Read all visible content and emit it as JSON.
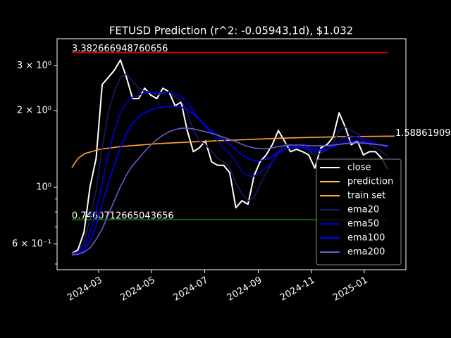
{
  "chart_data": {
    "type": "line",
    "title": "FETUSD Prediction (r^2: -0.05943,1d), $1.032",
    "log_y": true,
    "background": "#000000",
    "legend": "lower right",
    "xlim": [
      "2024-01-13",
      "2025-02-18"
    ],
    "xticks": [
      "2024-03",
      "2024-05",
      "2024-07",
      "2024-09",
      "2024-11",
      "2025-01"
    ],
    "ylim": [
      0.475,
      3.83
    ],
    "yticks": [
      {
        "value": 0.6,
        "label": "6 × 10⁻¹"
      },
      {
        "value": 1,
        "label": "10⁰"
      },
      {
        "value": 2,
        "label": "2 × 10⁰"
      },
      {
        "value": 3,
        "label": "3 × 10⁰"
      }
    ],
    "yminorticks": [
      0.5,
      0.7,
      0.8,
      0.9
    ],
    "hlines": [
      {
        "value": 3.382666948760656,
        "label": "3.382666948760656",
        "color": "#e00000"
      },
      {
        "value": 0.7460712665043656,
        "label": "0.7460712665043656",
        "color": "#008000"
      }
    ],
    "series": [
      {
        "name": "close",
        "color": "#ffffff",
        "x": [
          "2024-01-30",
          "2024-02-06",
          "2024-02-13",
          "2024-02-20",
          "2024-02-27",
          "2024-03-05",
          "2024-03-12",
          "2024-03-19",
          "2024-03-26",
          "2024-04-02",
          "2024-04-09",
          "2024-04-16",
          "2024-04-23",
          "2024-04-30",
          "2024-05-07",
          "2024-05-14",
          "2024-05-21",
          "2024-05-28",
          "2024-06-04",
          "2024-06-11",
          "2024-06-18",
          "2024-06-25",
          "2024-07-02",
          "2024-07-09",
          "2024-07-16",
          "2024-07-23",
          "2024-07-30",
          "2024-08-06",
          "2024-08-13",
          "2024-08-20",
          "2024-08-27",
          "2024-09-03",
          "2024-09-10",
          "2024-09-17",
          "2024-09-24",
          "2024-10-01",
          "2024-10-08",
          "2024-10-15",
          "2024-10-22",
          "2024-10-29",
          "2024-11-05",
          "2024-11-12",
          "2024-11-19",
          "2024-11-26",
          "2024-12-03",
          "2024-12-10",
          "2024-12-17",
          "2024-12-24",
          "2024-12-31",
          "2025-01-07",
          "2025-01-14",
          "2025-01-21",
          "2025-01-28"
        ],
        "values": [
          0.55,
          0.568,
          0.666,
          1.006,
          1.298,
          2.53,
          2.7,
          2.88,
          3.16,
          2.7,
          2.23,
          2.23,
          2.45,
          2.3,
          2.23,
          2.45,
          2.37,
          2.09,
          2.16,
          1.67,
          1.38,
          1.43,
          1.52,
          1.26,
          1.22,
          1.22,
          1.14,
          0.832,
          0.886,
          0.858,
          1.11,
          1.26,
          1.34,
          1.47,
          1.67,
          1.52,
          1.38,
          1.41,
          1.38,
          1.34,
          1.19,
          1.43,
          1.47,
          1.57,
          1.96,
          1.73,
          1.47,
          1.52,
          1.34,
          1.38,
          1.38,
          1.3,
          1.18
        ]
      },
      {
        "name": "prediction",
        "color": "#ffcc33",
        "x": [
          "2025-02-05"
        ],
        "values": [
          1.58861909
        ],
        "value_labels": [
          "1.588619090"
        ]
      },
      {
        "name": "train set",
        "color": "#ffa533",
        "x": [
          "2024-01-30",
          "2024-02-06",
          "2024-02-14",
          "2024-03-02",
          "2024-03-27",
          "2024-05-07",
          "2024-07-12",
          "2024-10-02",
          "2024-12-07",
          "2025-02-05"
        ],
        "values": [
          1.195,
          1.298,
          1.357,
          1.41,
          1.446,
          1.483,
          1.522,
          1.561,
          1.581,
          1.5886
        ]
      },
      {
        "name": "ema20",
        "color": "#191970",
        "x": [
          "2024-01-30",
          "2024-02-06",
          "2024-02-13",
          "2024-02-20",
          "2024-02-27",
          "2024-03-05",
          "2024-03-12",
          "2024-03-19",
          "2024-03-26",
          "2024-04-02",
          "2024-04-09",
          "2024-04-16",
          "2024-04-23",
          "2024-04-30",
          "2024-05-07",
          "2024-05-14",
          "2024-05-21",
          "2024-05-28",
          "2024-06-04",
          "2024-06-11",
          "2024-06-18",
          "2024-06-25",
          "2024-07-02",
          "2024-07-09",
          "2024-07-16",
          "2024-07-23",
          "2024-07-30",
          "2024-08-06",
          "2024-08-13",
          "2024-08-20",
          "2024-08-27",
          "2024-09-03",
          "2024-09-10",
          "2024-09-17",
          "2024-09-24",
          "2024-10-01",
          "2024-10-08",
          "2024-10-15",
          "2024-10-22",
          "2024-10-29",
          "2024-11-05",
          "2024-11-12",
          "2024-11-19",
          "2024-11-26",
          "2024-12-03",
          "2024-12-10",
          "2024-12-17",
          "2024-12-24",
          "2024-12-31",
          "2025-01-07",
          "2025-01-14",
          "2025-01-21",
          "2025-01-28"
        ],
        "values": [
          0.55,
          0.557,
          0.605,
          0.756,
          0.975,
          1.428,
          1.963,
          2.375,
          2.697,
          2.785,
          2.613,
          2.452,
          2.375,
          2.375,
          2.301,
          2.345,
          2.375,
          2.257,
          2.187,
          1.963,
          1.674,
          1.522,
          1.474,
          1.383,
          1.298,
          1.257,
          1.195,
          1.039,
          0.944,
          0.886,
          0.911,
          1.026,
          1.143,
          1.257,
          1.383,
          1.474,
          1.474,
          1.446,
          1.428,
          1.401,
          1.34,
          1.357,
          1.41,
          1.474,
          1.674,
          1.728,
          1.674,
          1.622,
          1.522,
          1.474,
          1.428,
          1.383,
          1.323
        ]
      },
      {
        "name": "ema50",
        "color": "#0000cd",
        "x": [
          "2024-01-30",
          "2024-02-06",
          "2024-02-13",
          "2024-02-20",
          "2024-02-27",
          "2024-03-05",
          "2024-03-12",
          "2024-03-19",
          "2024-03-26",
          "2024-04-02",
          "2024-04-09",
          "2024-04-16",
          "2024-04-23",
          "2024-04-30",
          "2024-05-07",
          "2024-05-14",
          "2024-05-21",
          "2024-05-28",
          "2024-06-04",
          "2024-06-11",
          "2024-06-18",
          "2024-06-25",
          "2024-07-02",
          "2024-07-09",
          "2024-07-16",
          "2024-07-23",
          "2024-07-30",
          "2024-08-06",
          "2024-08-13",
          "2024-08-20",
          "2024-08-27",
          "2024-09-03",
          "2024-09-10",
          "2024-09-17",
          "2024-09-24",
          "2024-10-01",
          "2024-10-08",
          "2024-10-15",
          "2024-10-22",
          "2024-10-29",
          "2024-11-05",
          "2024-11-12",
          "2024-11-19",
          "2024-11-26",
          "2024-12-03",
          "2024-12-10",
          "2024-12-17",
          "2024-12-24",
          "2024-12-31",
          "2025-01-07",
          "2025-01-14",
          "2025-01-21",
          "2025-01-28"
        ],
        "values": [
          0.543,
          0.55,
          0.578,
          0.666,
          0.805,
          1.039,
          1.34,
          1.674,
          1.963,
          2.159,
          2.257,
          2.301,
          2.345,
          2.36,
          2.345,
          2.36,
          2.36,
          2.316,
          2.272,
          2.159,
          1.988,
          1.842,
          1.728,
          1.622,
          1.522,
          1.428,
          1.357,
          1.257,
          1.158,
          1.107,
          1.107,
          1.143,
          1.195,
          1.257,
          1.357,
          1.41,
          1.428,
          1.428,
          1.428,
          1.41,
          1.383,
          1.392,
          1.41,
          1.446,
          1.522,
          1.571,
          1.591,
          1.581,
          1.541,
          1.522,
          1.483,
          1.465,
          1.428
        ]
      },
      {
        "name": "ema100",
        "color": "#0000ff",
        "x": [
          "2024-01-30",
          "2024-02-06",
          "2024-02-13",
          "2024-02-20",
          "2024-02-27",
          "2024-03-05",
          "2024-03-12",
          "2024-03-19",
          "2024-03-26",
          "2024-04-02",
          "2024-04-09",
          "2024-04-16",
          "2024-04-23",
          "2024-04-30",
          "2024-05-07",
          "2024-05-14",
          "2024-05-21",
          "2024-05-28",
          "2024-06-04",
          "2024-06-11",
          "2024-06-18",
          "2024-06-25",
          "2024-07-02",
          "2024-07-09",
          "2024-07-16",
          "2024-07-23",
          "2024-07-30",
          "2024-08-06",
          "2024-08-13",
          "2024-08-20",
          "2024-08-27",
          "2024-09-03",
          "2024-09-10",
          "2024-09-17",
          "2024-09-24",
          "2024-10-01",
          "2024-10-08",
          "2024-10-15",
          "2024-10-22",
          "2024-10-29",
          "2024-11-05",
          "2024-11-12",
          "2024-11-19",
          "2024-11-26",
          "2024-12-03",
          "2024-12-10",
          "2024-12-17",
          "2024-12-24",
          "2024-12-31",
          "2025-01-07",
          "2025-01-14",
          "2025-01-21",
          "2025-01-28"
        ],
        "values": [
          0.543,
          0.546,
          0.564,
          0.616,
          0.709,
          0.858,
          1.039,
          1.218,
          1.428,
          1.622,
          1.784,
          1.901,
          1.963,
          2.013,
          2.052,
          2.065,
          2.078,
          2.078,
          2.065,
          2.026,
          1.938,
          1.842,
          1.75,
          1.674,
          1.601,
          1.541,
          1.474,
          1.41,
          1.34,
          1.298,
          1.273,
          1.273,
          1.29,
          1.323,
          1.383,
          1.41,
          1.428,
          1.437,
          1.437,
          1.428,
          1.41,
          1.41,
          1.419,
          1.437,
          1.474,
          1.502,
          1.522,
          1.522,
          1.512,
          1.493,
          1.474,
          1.465,
          1.446
        ]
      },
      {
        "name": "ema200",
        "color": "#6a5acd",
        "x": [
          "2024-01-30",
          "2024-02-06",
          "2024-02-13",
          "2024-02-20",
          "2024-02-27",
          "2024-03-05",
          "2024-03-12",
          "2024-03-19",
          "2024-03-26",
          "2024-04-02",
          "2024-04-09",
          "2024-04-16",
          "2024-04-23",
          "2024-04-30",
          "2024-05-07",
          "2024-05-14",
          "2024-05-21",
          "2024-05-28",
          "2024-06-04",
          "2024-06-11",
          "2024-06-18",
          "2024-06-25",
          "2024-07-02",
          "2024-07-09",
          "2024-07-16",
          "2024-07-23",
          "2024-07-30",
          "2024-08-06",
          "2024-08-13",
          "2024-08-20",
          "2024-08-27",
          "2024-09-03",
          "2024-09-10",
          "2024-09-17",
          "2024-09-24",
          "2024-10-01",
          "2024-10-08",
          "2024-10-15",
          "2024-10-22",
          "2024-10-29",
          "2024-11-05",
          "2024-11-12",
          "2024-11-19",
          "2024-11-26",
          "2024-12-03",
          "2024-12-10",
          "2024-12-17",
          "2024-12-24",
          "2024-12-31",
          "2025-01-07",
          "2025-01-14",
          "2025-01-21",
          "2025-01-28"
        ],
        "values": [
          0.543,
          0.546,
          0.557,
          0.578,
          0.624,
          0.687,
          0.78,
          0.886,
          1.006,
          1.121,
          1.218,
          1.298,
          1.383,
          1.465,
          1.541,
          1.601,
          1.653,
          1.685,
          1.706,
          1.706,
          1.696,
          1.674,
          1.653,
          1.632,
          1.601,
          1.571,
          1.541,
          1.512,
          1.474,
          1.446,
          1.428,
          1.419,
          1.419,
          1.428,
          1.446,
          1.455,
          1.465,
          1.465,
          1.465,
          1.455,
          1.455,
          1.455,
          1.455,
          1.465,
          1.474,
          1.483,
          1.493,
          1.493,
          1.493,
          1.483,
          1.474,
          1.465,
          1.455
        ]
      }
    ]
  }
}
